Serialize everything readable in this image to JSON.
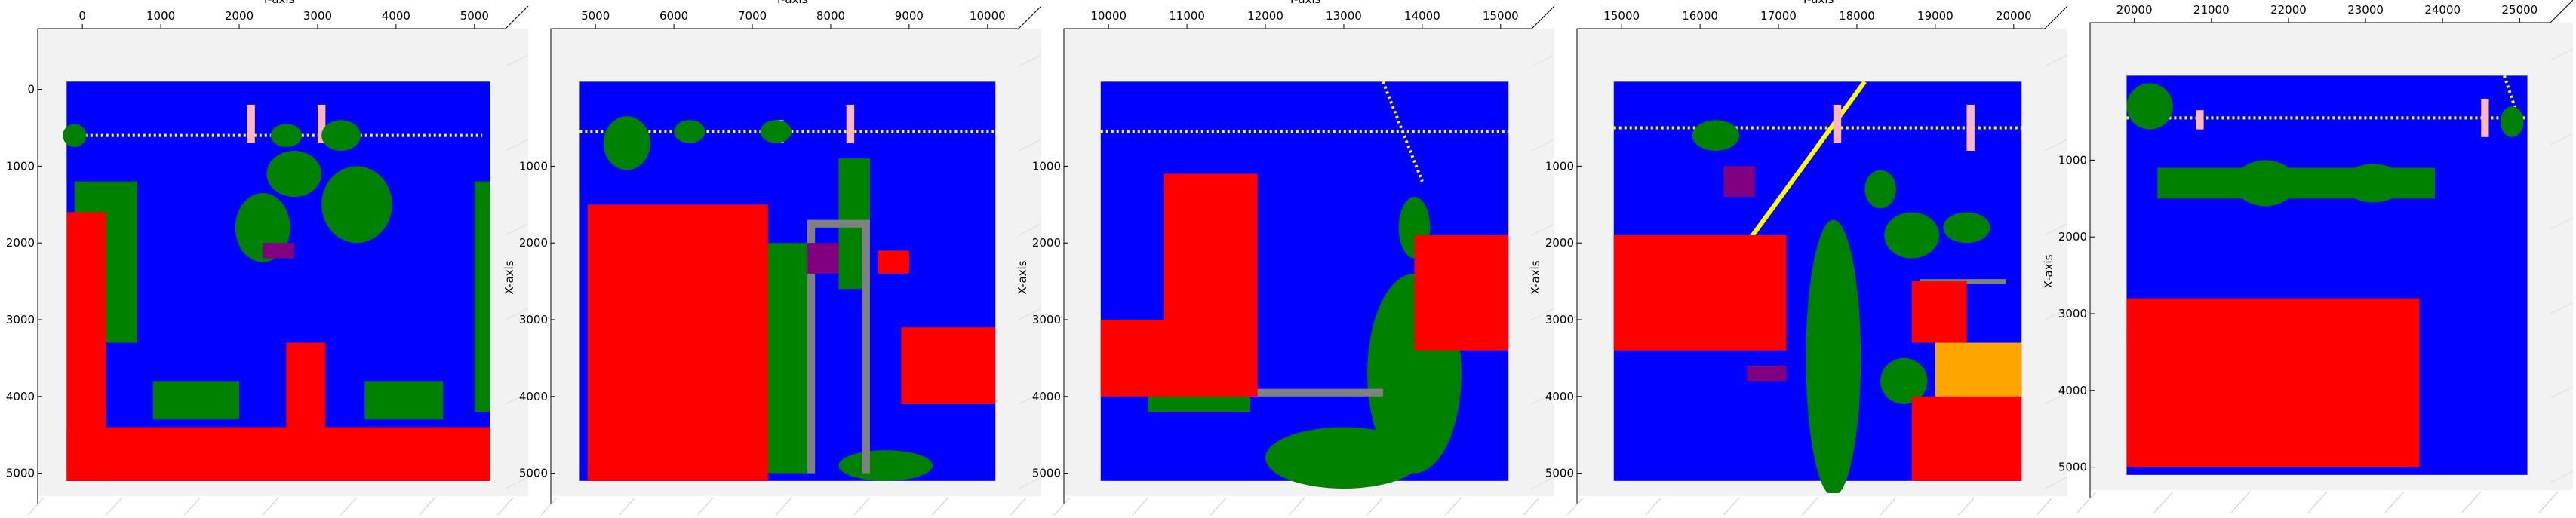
{
  "figure": {
    "type": "3d-scatter-top-view",
    "panel_count": 5,
    "colors": {
      "ground": "#0000ff",
      "building": "#ff0000",
      "vegetation": "#008000",
      "wire": "#ffff00",
      "pole": "#ffb6c1",
      "fence": "#808080",
      "car": "#800080",
      "roof": "#ffa500"
    }
  },
  "chart_data": [
    {
      "type": "scatter",
      "title": "",
      "ylabel_top": "Y-axis",
      "xlabel_side": "X-axis",
      "y_ticks": [
        0,
        1000,
        2000,
        3000,
        4000,
        5000
      ],
      "x_ticks": [
        0,
        1000,
        2000,
        3000,
        4000,
        5000
      ],
      "y_range": [
        -300,
        5300
      ],
      "x_range": [
        -300,
        5200
      ],
      "regions": [
        {
          "class": "vegetation",
          "shape": "rect",
          "y0": -200,
          "y1": 5200,
          "x0": -100,
          "x1": 1200
        },
        {
          "class": "ground",
          "shape": "rect",
          "y0": -200,
          "y1": 5200,
          "x0": -100,
          "x1": 5100
        },
        {
          "class": "wire",
          "shape": "line",
          "y0": -100,
          "y1": 5100,
          "x0": 600,
          "x1": 600
        },
        {
          "class": "pole",
          "shape": "rect",
          "y0": 2100,
          "y1": 2200,
          "x0": 200,
          "x1": 700
        },
        {
          "class": "pole",
          "shape": "rect",
          "y0": 3000,
          "y1": 3100,
          "x0": 200,
          "x1": 700
        },
        {
          "class": "vegetation",
          "shape": "ellipse",
          "cy": -100,
          "cx": 600,
          "ry": 150,
          "rx": 150
        },
        {
          "class": "vegetation",
          "shape": "ellipse",
          "cy": 3500,
          "cx": 1500,
          "ry": 450,
          "rx": 500
        },
        {
          "class": "vegetation",
          "shape": "ellipse",
          "cy": 2700,
          "cx": 1100,
          "ry": 350,
          "rx": 300
        },
        {
          "class": "vegetation",
          "shape": "ellipse",
          "cy": 2300,
          "cx": 1800,
          "ry": 350,
          "rx": 450
        },
        {
          "class": "vegetation",
          "shape": "ellipse",
          "cy": 3300,
          "cx": 600,
          "ry": 250,
          "rx": 200
        },
        {
          "class": "vegetation",
          "shape": "ellipse",
          "cy": 2600,
          "cx": 600,
          "ry": 200,
          "rx": 150
        },
        {
          "class": "vegetation",
          "shape": "rect",
          "y0": -100,
          "y1": 700,
          "x0": 1200,
          "x1": 3300
        },
        {
          "class": "vegetation",
          "shape": "rect",
          "y0": 5000,
          "y1": 5200,
          "x0": 1200,
          "x1": 4200
        },
        {
          "class": "vegetation",
          "shape": "rect",
          "y0": 900,
          "y1": 2000,
          "x0": 3800,
          "x1": 4300
        },
        {
          "class": "vegetation",
          "shape": "rect",
          "y0": 3600,
          "y1": 4600,
          "x0": 3800,
          "x1": 4300
        },
        {
          "class": "car",
          "shape": "rect",
          "y0": 2300,
          "y1": 2700,
          "x0": 2000,
          "x1": 2200
        },
        {
          "class": "building",
          "shape": "rect",
          "y0": -200,
          "y1": 300,
          "x0": 1600,
          "x1": 5100
        },
        {
          "class": "building",
          "shape": "rect",
          "y0": -200,
          "y1": 5200,
          "x0": 4400,
          "x1": 5100
        },
        {
          "class": "building",
          "shape": "rect",
          "y0": 2600,
          "y1": 3100,
          "x0": 3300,
          "x1": 4500
        }
      ]
    },
    {
      "type": "scatter",
      "title": "",
      "ylabel_top": "Y-axis",
      "xlabel_side": "X-axis",
      "y_ticks": [
        5000,
        6000,
        7000,
        8000,
        9000,
        10000
      ],
      "x_ticks": [
        1000,
        2000,
        3000,
        4000,
        5000
      ],
      "y_range": [
        4700,
        10300
      ],
      "x_range": [
        -300,
        5200
      ],
      "regions": [
        {
          "class": "ground",
          "shape": "rect",
          "y0": 4800,
          "y1": 10100,
          "x0": -100,
          "x1": 5100
        },
        {
          "class": "wire",
          "shape": "line",
          "y0": 4800,
          "y1": 10100,
          "x0": 550,
          "x1": 550
        },
        {
          "class": "pole",
          "shape": "rect",
          "y0": 8200,
          "y1": 8300,
          "x0": 200,
          "x1": 700
        },
        {
          "class": "pole",
          "shape": "rect",
          "y0": 7300,
          "y1": 7400,
          "x0": 400,
          "x1": 700
        },
        {
          "class": "vegetation",
          "shape": "ellipse",
          "cy": 5400,
          "cx": 700,
          "ry": 300,
          "rx": 350
        },
        {
          "class": "vegetation",
          "shape": "ellipse",
          "cy": 6200,
          "cx": 550,
          "ry": 200,
          "rx": 150
        },
        {
          "class": "vegetation",
          "shape": "ellipse",
          "cy": 7300,
          "cx": 550,
          "ry": 200,
          "rx": 150
        },
        {
          "class": "vegetation",
          "shape": "rect",
          "y0": 7100,
          "y1": 7700,
          "x0": 2000,
          "x1": 5000
        },
        {
          "class": "vegetation",
          "shape": "ellipse",
          "cy": 7300,
          "cx": 3600,
          "ry": 300,
          "rx": 250
        },
        {
          "class": "vegetation",
          "shape": "ellipse",
          "cy": 8700,
          "cx": 4900,
          "ry": 600,
          "rx": 200
        },
        {
          "class": "vegetation",
          "shape": "rect",
          "y0": 8100,
          "y1": 8500,
          "x0": 900,
          "x1": 2600
        },
        {
          "class": "fence",
          "shape": "rect",
          "y0": 7700,
          "y1": 7800,
          "x0": 1700,
          "x1": 5000
        },
        {
          "class": "fence",
          "shape": "rect",
          "y0": 8400,
          "y1": 8500,
          "x0": 1700,
          "x1": 5000
        },
        {
          "class": "fence",
          "shape": "rect",
          "y0": 7700,
          "y1": 8500,
          "x0": 1700,
          "x1": 1800
        },
        {
          "class": "car",
          "shape": "rect",
          "y0": 7700,
          "y1": 8100,
          "x0": 2000,
          "x1": 2400
        },
        {
          "class": "building",
          "shape": "rect",
          "y0": 4900,
          "y1": 7200,
          "x0": 1500,
          "x1": 5100
        },
        {
          "class": "building",
          "shape": "rect",
          "y0": 8900,
          "y1": 10100,
          "x0": 3100,
          "x1": 4100
        },
        {
          "class": "building",
          "shape": "rect",
          "y0": 8600,
          "y1": 9000,
          "x0": 2100,
          "x1": 2400
        }
      ]
    },
    {
      "type": "scatter",
      "title": "",
      "ylabel_top": "Y-axis",
      "xlabel_side": "X-axis",
      "y_ticks": [
        10000,
        11000,
        12000,
        13000,
        14000,
        15000
      ],
      "x_ticks": [
        1000,
        2000,
        3000,
        4000,
        5000
      ],
      "y_range": [
        9700,
        15300
      ],
      "x_range": [
        -300,
        5200
      ],
      "regions": [
        {
          "class": "ground",
          "shape": "rect",
          "y0": 9900,
          "y1": 15100,
          "x0": -100,
          "x1": 5100
        },
        {
          "class": "wire",
          "shape": "line",
          "y0": 9900,
          "y1": 15100,
          "x0": 550,
          "x1": 550
        },
        {
          "class": "wire",
          "shape": "line",
          "y0": 13500,
          "y1": 14000,
          "x0": -100,
          "x1": 1200
        },
        {
          "class": "vegetation",
          "shape": "ellipse",
          "cy": 13900,
          "cx": 3700,
          "ry": 600,
          "rx": 1300
        },
        {
          "class": "vegetation",
          "shape": "ellipse",
          "cy": 13000,
          "cx": 4800,
          "ry": 1000,
          "rx": 400
        },
        {
          "class": "vegetation",
          "shape": "ellipse",
          "cy": 13900,
          "cx": 1800,
          "ry": 200,
          "rx": 400
        },
        {
          "class": "vegetation",
          "shape": "rect",
          "y0": 10500,
          "y1": 11800,
          "x0": 4000,
          "x1": 4200
        },
        {
          "class": "fence",
          "shape": "rect",
          "y0": 11800,
          "y1": 13500,
          "x0": 3900,
          "x1": 4000
        },
        {
          "class": "building",
          "shape": "rect",
          "y0": 9900,
          "y1": 11800,
          "x0": 3000,
          "x1": 4000
        },
        {
          "class": "building",
          "shape": "rect",
          "y0": 10700,
          "y1": 11900,
          "x0": 1100,
          "x1": 4000
        },
        {
          "class": "building",
          "shape": "rect",
          "y0": 13900,
          "y1": 15100,
          "x0": 1900,
          "x1": 3400
        }
      ]
    },
    {
      "type": "scatter",
      "title": "",
      "ylabel_top": "Y-axis",
      "xlabel_side": "X-axis",
      "y_ticks": [
        15000,
        16000,
        17000,
        18000,
        19000,
        20000
      ],
      "x_ticks": [
        1000,
        2000,
        3000,
        4000,
        5000
      ],
      "y_range": [
        14700,
        20300
      ],
      "x_range": [
        -300,
        5200
      ],
      "regions": [
        {
          "class": "ground",
          "shape": "rect",
          "y0": 14900,
          "y1": 20100,
          "x0": -100,
          "x1": 5100
        },
        {
          "class": "wire",
          "shape": "line",
          "y0": 14900,
          "y1": 20100,
          "x0": 500,
          "x1": 500
        },
        {
          "class": "wire",
          "shape": "diag",
          "y0": 16600,
          "x0": 2000,
          "y1": 18100,
          "x1": -100
        },
        {
          "class": "pole",
          "shape": "rect",
          "y0": 17700,
          "y1": 17800,
          "x0": 200,
          "x1": 700
        },
        {
          "class": "pole",
          "shape": "rect",
          "y0": 19400,
          "y1": 19500,
          "x0": 200,
          "x1": 800
        },
        {
          "class": "vegetation",
          "shape": "ellipse",
          "cy": 16200,
          "cx": 600,
          "ry": 300,
          "rx": 200
        },
        {
          "class": "vegetation",
          "shape": "ellipse",
          "cy": 17700,
          "cx": 3500,
          "ry": 350,
          "rx": 1800
        },
        {
          "class": "vegetation",
          "shape": "ellipse",
          "cy": 18300,
          "cx": 1300,
          "ry": 200,
          "rx": 250
        },
        {
          "class": "vegetation",
          "shape": "ellipse",
          "cy": 18700,
          "cx": 1900,
          "ry": 350,
          "rx": 300
        },
        {
          "class": "vegetation",
          "shape": "ellipse",
          "cy": 19400,
          "cx": 1800,
          "ry": 300,
          "rx": 200
        },
        {
          "class": "vegetation",
          "shape": "ellipse",
          "cy": 18600,
          "cx": 3800,
          "ry": 300,
          "rx": 300
        },
        {
          "class": "fence",
          "shape": "diag",
          "y0": 18800,
          "x0": 2500,
          "y1": 19900,
          "x1": 2500
        },
        {
          "class": "car",
          "shape": "rect",
          "y0": 16300,
          "y1": 16700,
          "x0": 1000,
          "x1": 1400
        },
        {
          "class": "car",
          "shape": "rect",
          "y0": 16600,
          "y1": 17100,
          "x0": 3600,
          "x1": 3800
        },
        {
          "class": "building",
          "shape": "rect",
          "y0": 14900,
          "y1": 17100,
          "x0": 1900,
          "x1": 3400
        },
        {
          "class": "building",
          "shape": "rect",
          "y0": 18700,
          "y1": 19400,
          "x0": 2500,
          "x1": 3300
        },
        {
          "class": "roof",
          "shape": "rect",
          "y0": 19000,
          "y1": 20100,
          "x0": 3300,
          "x1": 4800
        },
        {
          "class": "building",
          "shape": "rect",
          "y0": 18700,
          "y1": 20100,
          "x0": 4000,
          "x1": 5100
        }
      ]
    },
    {
      "type": "scatter",
      "title": "",
      "ylabel_top": "Y-axis",
      "xlabel_side": "X-axis",
      "y_ticks": [
        20000,
        21000,
        22000,
        23000,
        24000,
        25000
      ],
      "x_ticks": [
        1000,
        2000,
        3000,
        4000,
        5000
      ],
      "y_range": [
        19700,
        25300
      ],
      "x_range": [
        -300,
        5200
      ],
      "regions": [
        {
          "class": "ground",
          "shape": "rect",
          "y0": 19900,
          "y1": 25100,
          "x0": -100,
          "x1": 5100
        },
        {
          "class": "wire",
          "shape": "line",
          "y0": 19900,
          "y1": 25100,
          "x0": 450,
          "x1": 450
        },
        {
          "class": "wire",
          "shape": "line",
          "y0": 24800,
          "y1": 25000,
          "x0": -100,
          "x1": 500
        },
        {
          "class": "pole",
          "shape": "rect",
          "y0": 20800,
          "y1": 20900,
          "x0": 350,
          "x1": 600
        },
        {
          "class": "pole",
          "shape": "rect",
          "y0": 24500,
          "y1": 24600,
          "x0": 200,
          "x1": 700
        },
        {
          "class": "vegetation",
          "shape": "ellipse",
          "cy": 20200,
          "cx": 300,
          "ry": 300,
          "rx": 300
        },
        {
          "class": "vegetation",
          "shape": "rect",
          "y0": 20300,
          "y1": 23900,
          "x0": 1100,
          "x1": 1500
        },
        {
          "class": "vegetation",
          "shape": "ellipse",
          "cy": 21700,
          "cx": 1300,
          "ry": 400,
          "rx": 300
        },
        {
          "class": "vegetation",
          "shape": "ellipse",
          "cy": 23100,
          "cx": 1300,
          "ry": 400,
          "rx": 250
        },
        {
          "class": "vegetation",
          "shape": "ellipse",
          "cy": 24900,
          "cx": 500,
          "ry": 150,
          "rx": 200
        },
        {
          "class": "building",
          "shape": "rect",
          "y0": 19900,
          "y1": 23700,
          "x0": 2800,
          "x1": 5000
        },
        {
          "class": "building",
          "shape": "rect",
          "y0": 19900,
          "y1": 21000,
          "x0": 3200,
          "x1": 3400
        }
      ]
    }
  ]
}
